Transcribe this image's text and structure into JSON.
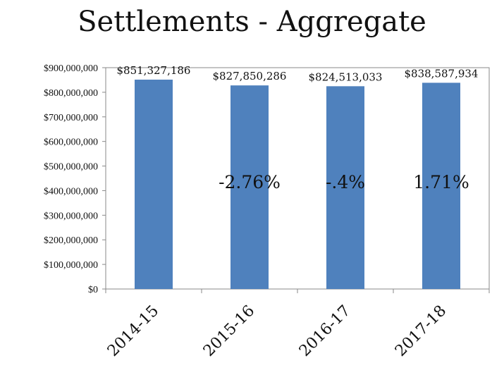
{
  "chart_data": {
    "type": "bar",
    "title": "Settlements - Aggregate",
    "xlabel": "",
    "ylabel": "",
    "categories": [
      "2014-15",
      "2015-16",
      "2016-17",
      "2017-18"
    ],
    "values": [
      851327186,
      827850286,
      824513033,
      838587934
    ],
    "data_labels": [
      "$851,327,186",
      "$827,850,286",
      "$824,513,033",
      "$838,587,934"
    ],
    "annotations": [
      "",
      "-2.76%",
      "-.4%",
      "1.71%"
    ],
    "ylim": [
      0,
      900000000
    ],
    "yticks": [
      0,
      100000000,
      200000000,
      300000000,
      400000000,
      500000000,
      600000000,
      700000000,
      800000000,
      900000000
    ],
    "ytick_labels": [
      "$0",
      "$100,000,000",
      "$200,000,000",
      "$300,000,000",
      "$400,000,000",
      "$500,000,000",
      "$600,000,000",
      "$700,000,000",
      "$800,000,000",
      "$900,000,000"
    ],
    "grid": false,
    "legend": "none",
    "bar_color": "#4f81bd",
    "axis_color": "#898989"
  }
}
